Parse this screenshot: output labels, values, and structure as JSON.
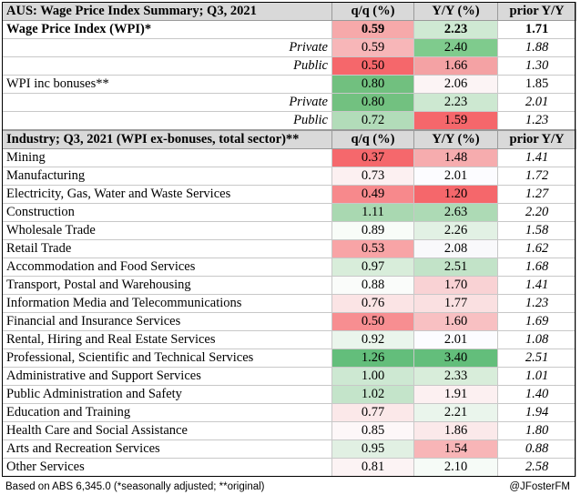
{
  "summary": {
    "header": {
      "title": "AUS: Wage Price Index Summary; Q3, 2021",
      "qq": "q/q (%)",
      "yy": "Y/Y (%)",
      "prior": "prior Y/Y"
    },
    "rows": [
      {
        "label": "Wage Price Index (WPI)*",
        "qq": "0.59",
        "yy": "2.23",
        "prior": "1.71",
        "style": "bold",
        "qq_color": "#f6a9aa",
        "yy_color": "#cfe9d3"
      },
      {
        "label": "Private",
        "qq": "0.59",
        "yy": "2.40",
        "prior": "1.88",
        "style": "sub",
        "qq_color": "#f7b6b8",
        "yy_color": "#7fcb8d"
      },
      {
        "label": "Public",
        "qq": "0.50",
        "yy": "1.66",
        "prior": "1.30",
        "style": "sub",
        "qq_color": "#f5676b",
        "yy_color": "#f4a2a4"
      },
      {
        "label": "WPI inc bonuses**",
        "qq": "0.80",
        "yy": "2.06",
        "prior": "1.85",
        "style": "plain",
        "qq_color": "#71c07f",
        "yy_color": "#fcf4f5"
      },
      {
        "label": "Private",
        "qq": "0.80",
        "yy": "2.23",
        "prior": "2.01",
        "style": "sub",
        "qq_color": "#72c180",
        "yy_color": "#cde8d1"
      },
      {
        "label": "Public",
        "qq": "0.72",
        "yy": "1.59",
        "prior": "1.23",
        "style": "sub",
        "qq_color": "#b2dcb9",
        "yy_color": "#f5676b"
      }
    ]
  },
  "industry": {
    "header": {
      "title": "Industry; Q3, 2021 (WPI ex-bonuses, total sector)**",
      "qq": "q/q (%)",
      "yy": "Y/Y (%)",
      "prior": "prior Y/Y"
    },
    "rows": [
      {
        "label": "Mining",
        "qq": "0.37",
        "yy": "1.48",
        "prior": "1.41",
        "qq_color": "#f5686c",
        "yy_color": "#f6acae"
      },
      {
        "label": "Manufacturing",
        "qq": "0.73",
        "yy": "2.01",
        "prior": "1.72",
        "qq_color": "#fcf0f1",
        "yy_color": "#fcfcff"
      },
      {
        "label": "Electricity, Gas, Water and Waste Services",
        "qq": "0.49",
        "yy": "1.20",
        "prior": "1.27",
        "qq_color": "#f7898c",
        "yy_color": "#f5676b"
      },
      {
        "label": "Construction",
        "qq": "1.11",
        "yy": "2.63",
        "prior": "2.20",
        "qq_color": "#a9d8b1",
        "yy_color": "#addab5"
      },
      {
        "label": "Wholesale Trade",
        "qq": "0.89",
        "yy": "2.26",
        "prior": "1.58",
        "qq_color": "#f8fcf8",
        "yy_color": "#e2f1e4"
      },
      {
        "label": "Retail Trade",
        "qq": "0.53",
        "yy": "2.08",
        "prior": "1.62",
        "qq_color": "#f8a4a6",
        "yy_color": "#f9f9fb"
      },
      {
        "label": "Accommodation and Food Services",
        "qq": "0.97",
        "yy": "2.51",
        "prior": "1.68",
        "qq_color": "#d8edda",
        "yy_color": "#c2e3c8"
      },
      {
        "label": "Transport, Postal and Warehousing",
        "qq": "0.88",
        "yy": "1.70",
        "prior": "1.41",
        "qq_color": "#fafcfa",
        "yy_color": "#f9d2d4"
      },
      {
        "label": "Information Media and Telecommunications",
        "qq": "0.76",
        "yy": "1.77",
        "prior": "1.23",
        "qq_color": "#fbe4e5",
        "yy_color": "#fae0e1"
      },
      {
        "label": "Financial and Insurance Services",
        "qq": "0.50",
        "yy": "1.60",
        "prior": "1.69",
        "qq_color": "#f78e91",
        "yy_color": "#f8c0c2"
      },
      {
        "label": "Rental, Hiring and Real Estate Services",
        "qq": "0.92",
        "yy": "2.01",
        "prior": "1.08",
        "qq_color": "#eaf5ec",
        "yy_color": "#fcfcff"
      },
      {
        "label": "Professional, Scientific and Technical Services",
        "qq": "1.26",
        "yy": "3.40",
        "prior": "2.51",
        "qq_color": "#63be7b",
        "yy_color": "#63be7b"
      },
      {
        "label": "Administrative and Support Services",
        "qq": "1.00",
        "yy": "2.33",
        "prior": "1.01",
        "qq_color": "#cde8d2",
        "yy_color": "#d8edda"
      },
      {
        "label": "Public Administration and Safety",
        "qq": "1.02",
        "yy": "1.91",
        "prior": "1.40",
        "qq_color": "#c4e4ca",
        "yy_color": "#fcf0f1"
      },
      {
        "label": "Education and Training",
        "qq": "0.77",
        "yy": "2.21",
        "prior": "1.94",
        "qq_color": "#fbe8e9",
        "yy_color": "#eaf5ec"
      },
      {
        "label": "Health Care and Social Assistance",
        "qq": "0.85",
        "yy": "1.86",
        "prior": "1.80",
        "qq_color": "#fdf7f8",
        "yy_color": "#fbe9ea"
      },
      {
        "label": "Arts and Recreation Services",
        "qq": "0.95",
        "yy": "1.54",
        "prior": "0.88",
        "qq_color": "#e1f0e3",
        "yy_color": "#f8b5b7"
      },
      {
        "label": "Other Services",
        "qq": "0.81",
        "yy": "2.10",
        "prior": "2.58",
        "qq_color": "#fcf3f4",
        "yy_color": "#f6fbf7"
      }
    ]
  },
  "footer": {
    "source": "Based on ABS 6,345.0 (*seasonally adjusted; **original)",
    "credit": "@JFosterFM"
  }
}
